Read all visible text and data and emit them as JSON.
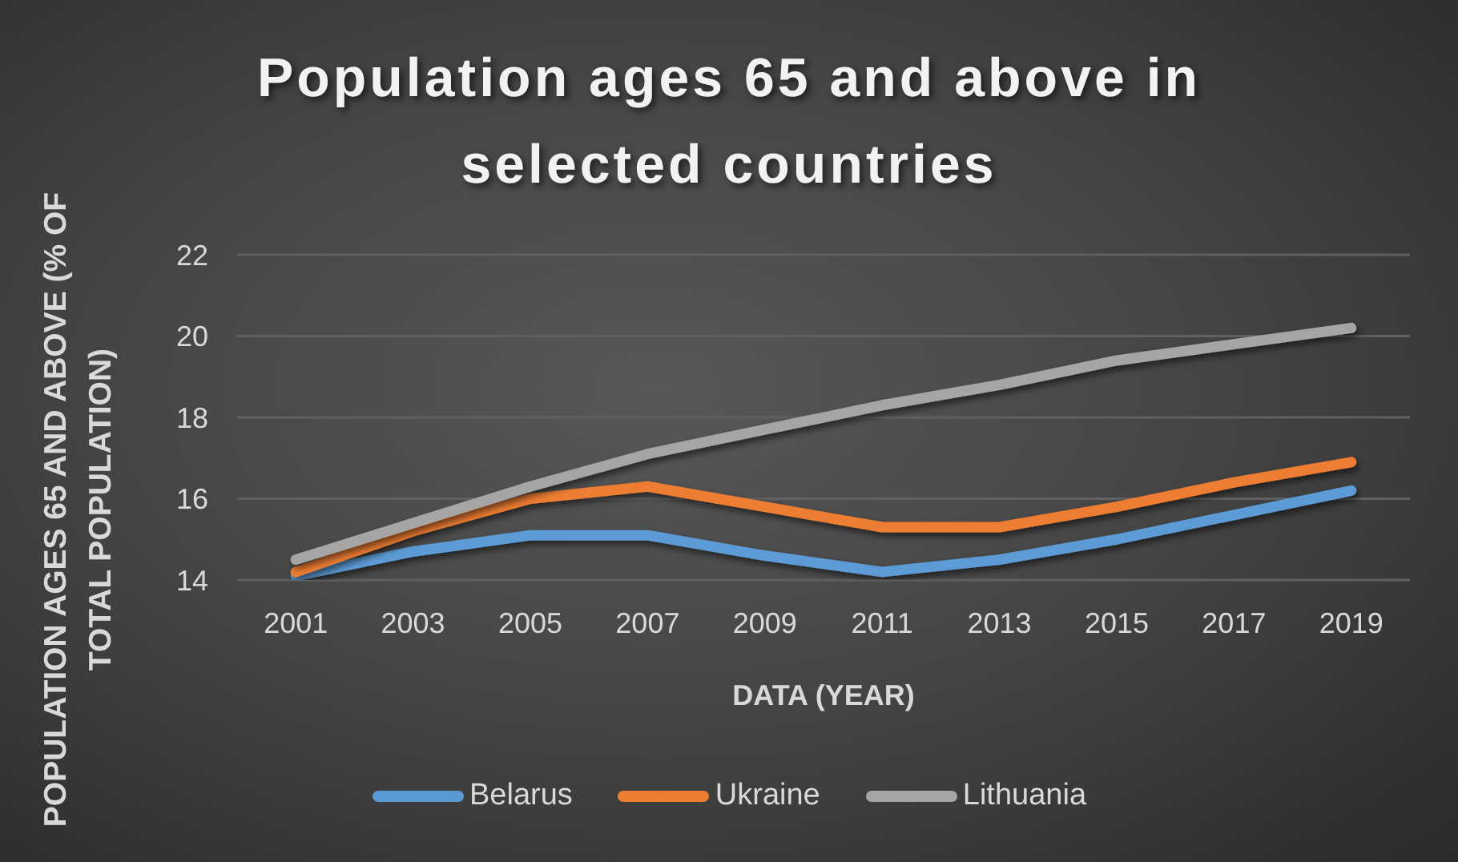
{
  "chart_data": {
    "type": "line",
    "title": "Population ages 65 and above in selected countries",
    "xlabel": "DATA (YEAR)",
    "ylabel": "POPULATION AGES 65 AND ABOVE (% OF TOTAL POPULATION)",
    "categories": [
      "2001",
      "2003",
      "2005",
      "2007",
      "2009",
      "2011",
      "2013",
      "2015",
      "2017",
      "2019"
    ],
    "series": [
      {
        "name": "Belarus",
        "color": "#5b9bd5",
        "values": [
          14.1,
          14.7,
          15.1,
          15.1,
          14.6,
          14.2,
          14.5,
          15.0,
          15.6,
          16.2
        ]
      },
      {
        "name": "Ukraine",
        "color": "#ed7d31",
        "values": [
          14.2,
          15.2,
          16.0,
          16.3,
          15.8,
          15.3,
          15.3,
          15.8,
          16.4,
          16.9
        ]
      },
      {
        "name": "Lithuania",
        "color": "#a5a5a5",
        "values": [
          14.5,
          15.4,
          16.3,
          17.1,
          17.7,
          18.3,
          18.8,
          19.4,
          19.8,
          20.2
        ]
      }
    ],
    "ylim": [
      14,
      22
    ],
    "yticks": [
      14,
      16,
      18,
      20,
      22
    ],
    "grid": "y",
    "legend": "bottom"
  }
}
